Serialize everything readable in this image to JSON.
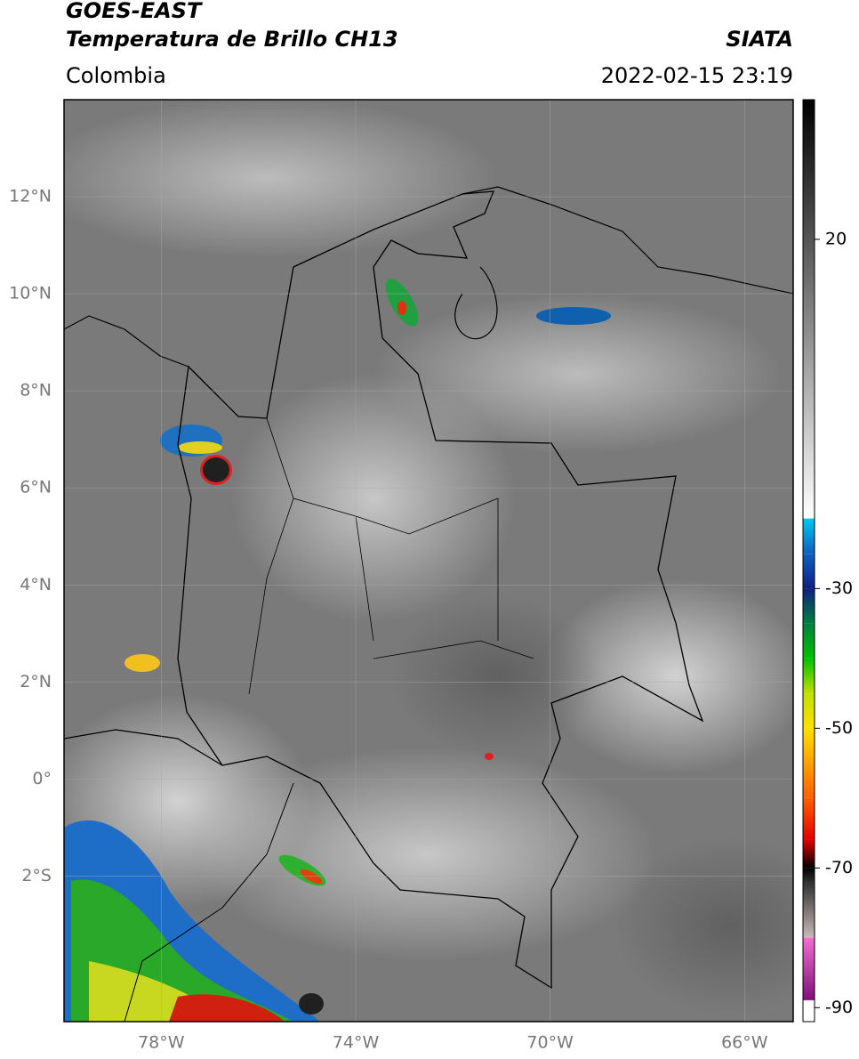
{
  "header": {
    "title": "GOES-EAST",
    "subtitle": "Temperatura de Brillo CH13",
    "source": "SIATA",
    "region": "Colombia",
    "datetime": "2022-02-15 23:19"
  },
  "map": {
    "lon_range": [
      -80,
      -65
    ],
    "lat_range": [
      -5,
      14
    ],
    "grid": true,
    "lat_ticks": [
      {
        "value": 12,
        "label": "12°N"
      },
      {
        "value": 10,
        "label": "10°N"
      },
      {
        "value": 8,
        "label": "8°N"
      },
      {
        "value": 6,
        "label": "6°N"
      },
      {
        "value": 4,
        "label": "4°N"
      },
      {
        "value": 2,
        "label": "2°N"
      },
      {
        "value": 0,
        "label": "0°"
      },
      {
        "value": -2,
        "label": "2°S"
      }
    ],
    "lon_ticks": [
      {
        "value": -78,
        "label": "78°W"
      },
      {
        "value": -74,
        "label": "74°W"
      },
      {
        "value": -70,
        "label": "70°W"
      },
      {
        "value": -66,
        "label": "66°W"
      }
    ]
  },
  "colorbar": {
    "range": [
      -92,
      40
    ],
    "ticks": [
      20,
      -30,
      -50,
      -70,
      -90
    ],
    "stops": [
      [
        -92,
        "#ffffff"
      ],
      [
        -89,
        "#ffffff"
      ],
      [
        -88.9,
        "#80107a"
      ],
      [
        -80,
        "#f070d0"
      ],
      [
        -79.9,
        "#c8b8b8"
      ],
      [
        -72,
        "#303030"
      ],
      [
        -70,
        "#000000"
      ],
      [
        -66,
        "#e00000"
      ],
      [
        -60,
        "#ff6000"
      ],
      [
        -50,
        "#ffe000"
      ],
      [
        -45,
        "#c0e000"
      ],
      [
        -40,
        "#00c000"
      ],
      [
        -35,
        "#008040"
      ],
      [
        -30,
        "#102080"
      ],
      [
        -25,
        "#1060c0"
      ],
      [
        -20,
        "#00c8f0"
      ],
      [
        -19.9,
        "#ffffff"
      ],
      [
        40,
        "#000000"
      ]
    ]
  }
}
